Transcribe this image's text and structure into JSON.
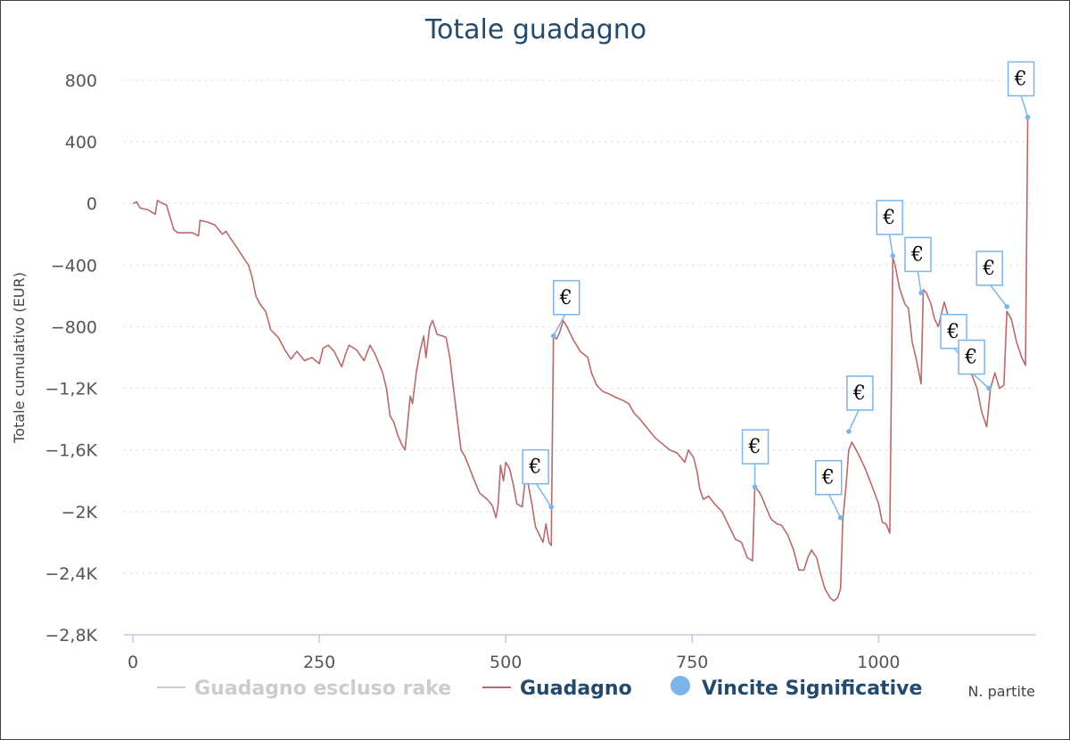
{
  "chart_data": {
    "type": "line",
    "title": "Totale guadagno",
    "ylabel": "Totale cumulativo (EUR)",
    "xlabel": "N. partite",
    "xlim": [
      0,
      1210
    ],
    "ylim": [
      -2800,
      800
    ],
    "x_ticks": [
      0,
      250,
      500,
      750,
      1000
    ],
    "x_tick_labels": [
      "0",
      "250",
      "500",
      "750",
      "1000"
    ],
    "y_ticks": [
      800,
      400,
      0,
      -400,
      -800,
      -1200,
      -1600,
      -2000,
      -2400,
      -2800
    ],
    "y_tick_labels": [
      "800",
      "400",
      "0",
      "−400",
      "−800",
      "−1,2K",
      "−1,6K",
      "−2K",
      "−2,4K",
      "−2,8K"
    ],
    "grid": "horizontal dotted",
    "legend_position": "bottom",
    "legend": [
      {
        "name": "Guadagno escluso rake",
        "color": "#cccccc",
        "symbol": "line",
        "hidden": true
      },
      {
        "name": "Guadagno",
        "color": "#b86a6e",
        "symbol": "line"
      },
      {
        "name": "Vincite Significative",
        "color": "#7cb5ec",
        "symbol": "circle"
      }
    ],
    "series": [
      {
        "name": "Guadagno",
        "color": "#b86a6e",
        "points": [
          [
            0,
            0
          ],
          [
            5,
            10
          ],
          [
            10,
            -30
          ],
          [
            20,
            -40
          ],
          [
            30,
            -70
          ],
          [
            33,
            20
          ],
          [
            38,
            5
          ],
          [
            45,
            -10
          ],
          [
            55,
            -170
          ],
          [
            60,
            -190
          ],
          [
            80,
            -190
          ],
          [
            88,
            -210
          ],
          [
            90,
            -110
          ],
          [
            100,
            -120
          ],
          [
            110,
            -140
          ],
          [
            120,
            -200
          ],
          [
            125,
            -180
          ],
          [
            130,
            -220
          ],
          [
            140,
            -290
          ],
          [
            148,
            -350
          ],
          [
            155,
            -400
          ],
          [
            160,
            -480
          ],
          [
            165,
            -600
          ],
          [
            170,
            -650
          ],
          [
            178,
            -700
          ],
          [
            185,
            -820
          ],
          [
            195,
            -870
          ],
          [
            205,
            -960
          ],
          [
            212,
            -1010
          ],
          [
            220,
            -960
          ],
          [
            230,
            -1020
          ],
          [
            240,
            -1000
          ],
          [
            250,
            -1040
          ],
          [
            255,
            -940
          ],
          [
            262,
            -920
          ],
          [
            270,
            -960
          ],
          [
            280,
            -1060
          ],
          [
            285,
            -980
          ],
          [
            290,
            -920
          ],
          [
            300,
            -950
          ],
          [
            310,
            -1020
          ],
          [
            318,
            -920
          ],
          [
            325,
            -980
          ],
          [
            335,
            -1100
          ],
          [
            340,
            -1200
          ],
          [
            345,
            -1380
          ],
          [
            350,
            -1420
          ],
          [
            355,
            -1500
          ],
          [
            360,
            -1560
          ],
          [
            365,
            -1600
          ],
          [
            368,
            -1450
          ],
          [
            372,
            -1250
          ],
          [
            375,
            -1300
          ],
          [
            380,
            -1100
          ],
          [
            385,
            -960
          ],
          [
            390,
            -860
          ],
          [
            393,
            -1000
          ],
          [
            398,
            -800
          ],
          [
            402,
            -760
          ],
          [
            408,
            -850
          ],
          [
            415,
            -860
          ],
          [
            420,
            -870
          ],
          [
            425,
            -1000
          ],
          [
            430,
            -1200
          ],
          [
            435,
            -1400
          ],
          [
            440,
            -1600
          ],
          [
            445,
            -1640
          ],
          [
            450,
            -1700
          ],
          [
            458,
            -1800
          ],
          [
            465,
            -1880
          ],
          [
            475,
            -1920
          ],
          [
            482,
            -1960
          ],
          [
            487,
            -2040
          ],
          [
            490,
            -1950
          ],
          [
            493,
            -1700
          ],
          [
            497,
            -1800
          ],
          [
            500,
            -1680
          ],
          [
            505,
            -1720
          ],
          [
            510,
            -1820
          ],
          [
            515,
            -1950
          ],
          [
            522,
            -1970
          ],
          [
            526,
            -1800
          ],
          [
            530,
            -1820
          ],
          [
            535,
            -1950
          ],
          [
            540,
            -2100
          ],
          [
            545,
            -2150
          ],
          [
            550,
            -2200
          ],
          [
            554,
            -2080
          ],
          [
            558,
            -2200
          ],
          [
            561,
            -2220
          ],
          [
            564,
            -860
          ],
          [
            568,
            -880
          ],
          [
            572,
            -840
          ],
          [
            577,
            -760
          ],
          [
            582,
            -800
          ],
          [
            590,
            -880
          ],
          [
            600,
            -960
          ],
          [
            610,
            -1000
          ],
          [
            615,
            -1100
          ],
          [
            622,
            -1180
          ],
          [
            630,
            -1220
          ],
          [
            640,
            -1240
          ],
          [
            648,
            -1260
          ],
          [
            658,
            -1280
          ],
          [
            665,
            -1300
          ],
          [
            672,
            -1360
          ],
          [
            680,
            -1400
          ],
          [
            690,
            -1460
          ],
          [
            700,
            -1520
          ],
          [
            710,
            -1560
          ],
          [
            720,
            -1600
          ],
          [
            730,
            -1620
          ],
          [
            740,
            -1680
          ],
          [
            745,
            -1600
          ],
          [
            752,
            -1650
          ],
          [
            757,
            -1750
          ],
          [
            760,
            -1850
          ],
          [
            765,
            -1920
          ],
          [
            772,
            -1900
          ],
          [
            780,
            -1950
          ],
          [
            790,
            -2000
          ],
          [
            800,
            -2100
          ],
          [
            808,
            -2180
          ],
          [
            816,
            -2200
          ],
          [
            824,
            -2300
          ],
          [
            831,
            -2320
          ],
          [
            834,
            -1840
          ],
          [
            838,
            -1860
          ],
          [
            843,
            -1900
          ],
          [
            848,
            -1960
          ],
          [
            856,
            -2050
          ],
          [
            864,
            -2080
          ],
          [
            870,
            -2090
          ],
          [
            878,
            -2150
          ],
          [
            886,
            -2250
          ],
          [
            893,
            -2380
          ],
          [
            900,
            -2380
          ],
          [
            905,
            -2300
          ],
          [
            910,
            -2250
          ],
          [
            917,
            -2300
          ],
          [
            922,
            -2400
          ],
          [
            928,
            -2500
          ],
          [
            935,
            -2560
          ],
          [
            940,
            -2580
          ],
          [
            945,
            -2560
          ],
          [
            949,
            -2500
          ],
          [
            952,
            -2050
          ],
          [
            956,
            -1850
          ],
          [
            960,
            -1600
          ],
          [
            964,
            -1550
          ],
          [
            970,
            -1600
          ],
          [
            975,
            -1650
          ],
          [
            982,
            -1720
          ],
          [
            990,
            -1820
          ],
          [
            1000,
            -1950
          ],
          [
            1005,
            -2070
          ],
          [
            1010,
            -2080
          ],
          [
            1015,
            -2140
          ],
          [
            1019,
            -350
          ],
          [
            1022,
            -400
          ],
          [
            1028,
            -550
          ],
          [
            1035,
            -650
          ],
          [
            1040,
            -680
          ],
          [
            1045,
            -900
          ],
          [
            1050,
            -1000
          ],
          [
            1057,
            -1170
          ],
          [
            1060,
            -560
          ],
          [
            1064,
            -580
          ],
          [
            1070,
            -650
          ],
          [
            1075,
            -750
          ],
          [
            1080,
            -800
          ],
          [
            1088,
            -640
          ],
          [
            1095,
            -760
          ],
          [
            1100,
            -880
          ],
          [
            1106,
            -850
          ],
          [
            1113,
            -960
          ],
          [
            1118,
            -1050
          ],
          [
            1124,
            -1100
          ],
          [
            1132,
            -1200
          ],
          [
            1138,
            -1350
          ],
          [
            1145,
            -1450
          ],
          [
            1150,
            -1200
          ],
          [
            1156,
            -1100
          ],
          [
            1162,
            -1200
          ],
          [
            1168,
            -1180
          ],
          [
            1172,
            -700
          ],
          [
            1178,
            -750
          ],
          [
            1185,
            -900
          ],
          [
            1192,
            -1000
          ],
          [
            1197,
            -1050
          ],
          [
            1200,
            560
          ]
        ]
      },
      {
        "name": "Vincite Significative",
        "color": "#7cb5ec",
        "marker": "circle",
        "label": "€",
        "points": [
          [
            561,
            -1970
          ],
          [
            564,
            -860
          ],
          [
            834,
            -1840
          ],
          [
            949,
            -2040
          ],
          [
            960,
            -1480
          ],
          [
            1019,
            -340
          ],
          [
            1057,
            -580
          ],
          [
            1124,
            -1080
          ],
          [
            1148,
            -1200
          ],
          [
            1172,
            -670
          ],
          [
            1200,
            560
          ]
        ]
      }
    ]
  }
}
